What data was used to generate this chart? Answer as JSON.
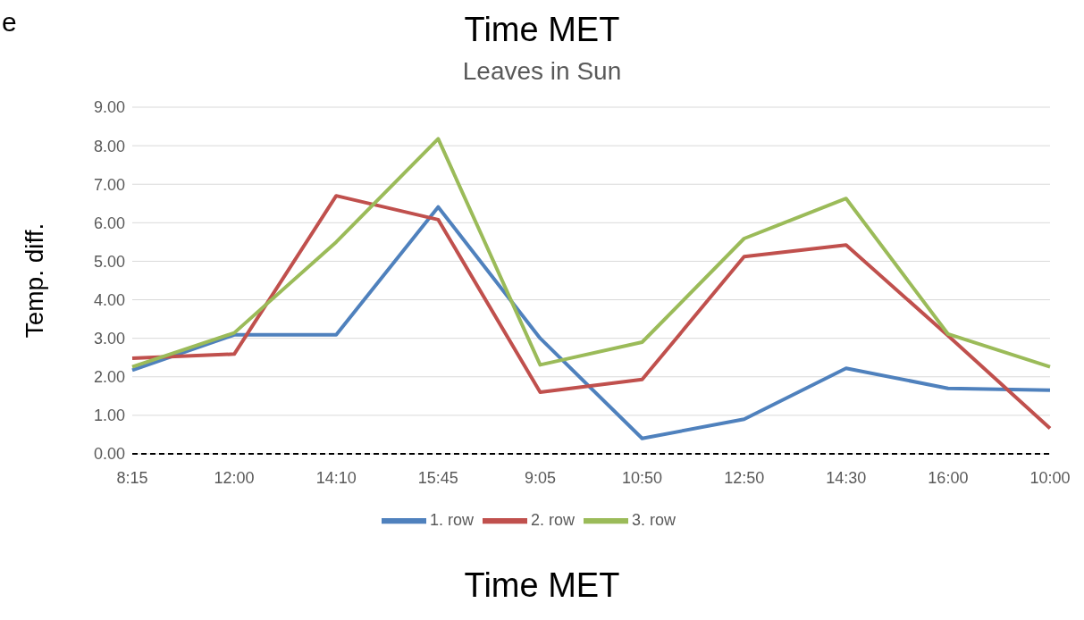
{
  "chart_data": {
    "type": "line",
    "title": "Time MET",
    "subtitle": "Leaves in Sun",
    "xlabel": "Time MET",
    "ylabel": "Temp. diff.",
    "annotations": [
      "e"
    ],
    "categories": [
      "8:15",
      "12:00",
      "14:10",
      "15:45",
      "9:05",
      "10:50",
      "12:50",
      "14:30",
      "16:00",
      "10:00"
    ],
    "series": [
      {
        "name": "1. row",
        "color": "#4f81bd",
        "values": [
          2.17,
          3.09,
          3.09,
          6.41,
          3.0,
          0.4,
          0.9,
          2.22,
          1.7,
          1.65
        ]
      },
      {
        "name": "2. row",
        "color": "#c0504d",
        "values": [
          2.48,
          2.59,
          6.7,
          6.08,
          1.6,
          1.93,
          5.12,
          5.42,
          3.07,
          0.66
        ]
      },
      {
        "name": "3. row",
        "color": "#9bbb59",
        "values": [
          2.26,
          3.14,
          5.5,
          8.18,
          2.31,
          2.9,
          5.59,
          6.63,
          3.11,
          2.26
        ]
      }
    ],
    "ylim": [
      0,
      9
    ],
    "yticks": [
      {
        "value": 0,
        "label": "0.00"
      },
      {
        "value": 1,
        "label": "1.00"
      },
      {
        "value": 2,
        "label": "2.00"
      },
      {
        "value": 3,
        "label": "3.00"
      },
      {
        "value": 4,
        "label": "4.00"
      },
      {
        "value": 5,
        "label": "5.00"
      },
      {
        "value": 6,
        "label": "6.00"
      },
      {
        "value": 7,
        "label": "7.00"
      },
      {
        "value": 8,
        "label": "8.00"
      },
      {
        "value": 9,
        "label": "9.00"
      }
    ],
    "ref_lines": [
      {
        "axis": "y",
        "value": 0,
        "color": "#000000",
        "line_style": "dashed"
      }
    ],
    "grid": "y",
    "legend": "bottom",
    "marker": "none",
    "line_style": "solid"
  }
}
